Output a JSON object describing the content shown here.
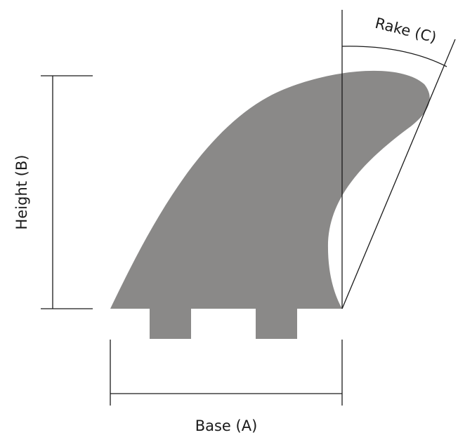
{
  "labels": {
    "base": "Base (A)",
    "height": "Height (B)",
    "rake": "Rake (C)"
  },
  "colors": {
    "fin_fill": "#8a8988",
    "line": "#1a1a1a",
    "background": "#ffffff"
  }
}
